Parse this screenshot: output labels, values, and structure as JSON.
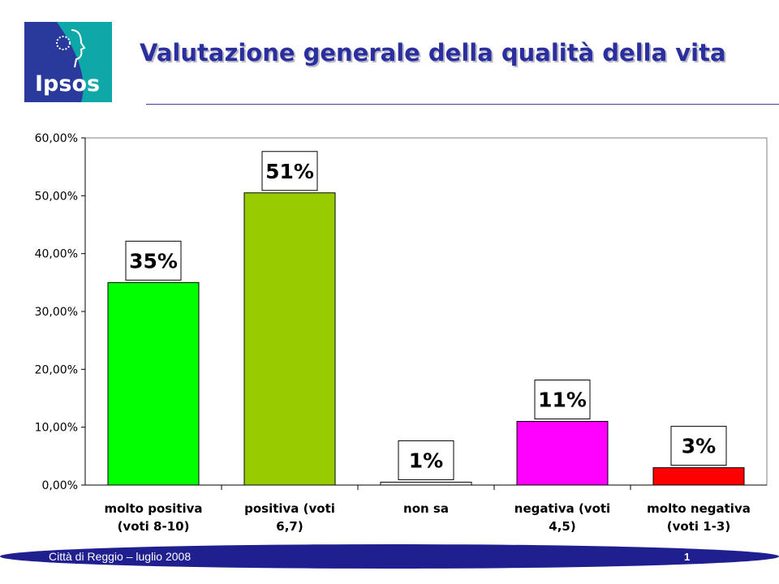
{
  "header": {
    "title": "Valutazione generale della qualità della vita",
    "logo_text": "Ipsos",
    "logo_color": "#2a3a9c",
    "logo_accent": "#0fa8a8"
  },
  "chart_data": {
    "type": "bar",
    "title": "",
    "xlabel": "",
    "ylabel": "",
    "ylim": [
      0,
      60
    ],
    "yticks": [
      0,
      10,
      20,
      30,
      40,
      50,
      60
    ],
    "ytick_labels": [
      "0,00%",
      "10,00%",
      "20,00%",
      "30,00%",
      "40,00%",
      "50,00%",
      "60,00%"
    ],
    "grid": false,
    "legend": "none",
    "categories": [
      [
        "molto positiva",
        "(voti 8-10)"
      ],
      [
        "positiva (voti",
        "6,7)"
      ],
      [
        "non sa"
      ],
      [
        "negativa (voti",
        "4,5)"
      ],
      [
        "molto negativa",
        "(voti 1-3)"
      ]
    ],
    "values": [
      35,
      50.5,
      0.5,
      11,
      3
    ],
    "data_labels": [
      "35%",
      "51%",
      "1%",
      "11%",
      "3%"
    ],
    "colors": [
      "#00ff00",
      "#99cc00",
      "#ffffff",
      "#ff00ff",
      "#ff0000"
    ]
  },
  "footer": {
    "text": "Città di Reggio – luglio 2008",
    "page_number": "1",
    "band_color": "#1f1f8f"
  }
}
